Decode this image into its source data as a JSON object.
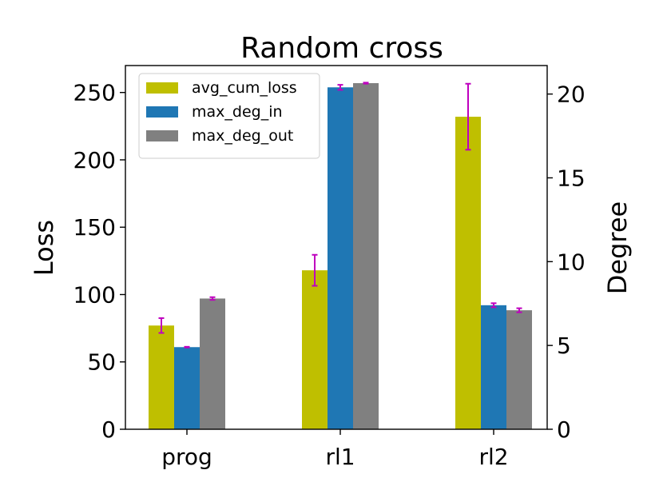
{
  "chart_data": {
    "type": "bar",
    "title": "Random cross",
    "categories": [
      "prog",
      "rl1",
      "rl2"
    ],
    "ylabel_left": "Loss",
    "ylabel_right": "Degree",
    "ylim_left": [
      0,
      270
    ],
    "ylim_right": [
      0,
      21.7
    ],
    "yticks_left": [
      0,
      50,
      100,
      150,
      200,
      250
    ],
    "yticks_right": [
      0,
      5,
      10,
      15,
      20
    ],
    "errorbar_color": "#bf00bf",
    "legend_position": "top-left",
    "series": [
      {
        "name": "avg_cum_loss",
        "axis": "left",
        "color": "#bfbf00",
        "values": [
          77,
          118,
          232
        ],
        "errors": [
          5.5,
          11.5,
          24.5
        ]
      },
      {
        "name": "max_deg_in",
        "axis": "right",
        "color": "#1f77b4",
        "values": [
          4.9,
          20.4,
          7.4
        ],
        "errors": [
          0.02,
          0.15,
          0.12
        ]
      },
      {
        "name": "max_deg_out",
        "axis": "right",
        "color": "#808080",
        "values": [
          7.8,
          20.65,
          7.1
        ],
        "errors": [
          0.08,
          0.03,
          0.12
        ]
      }
    ]
  }
}
